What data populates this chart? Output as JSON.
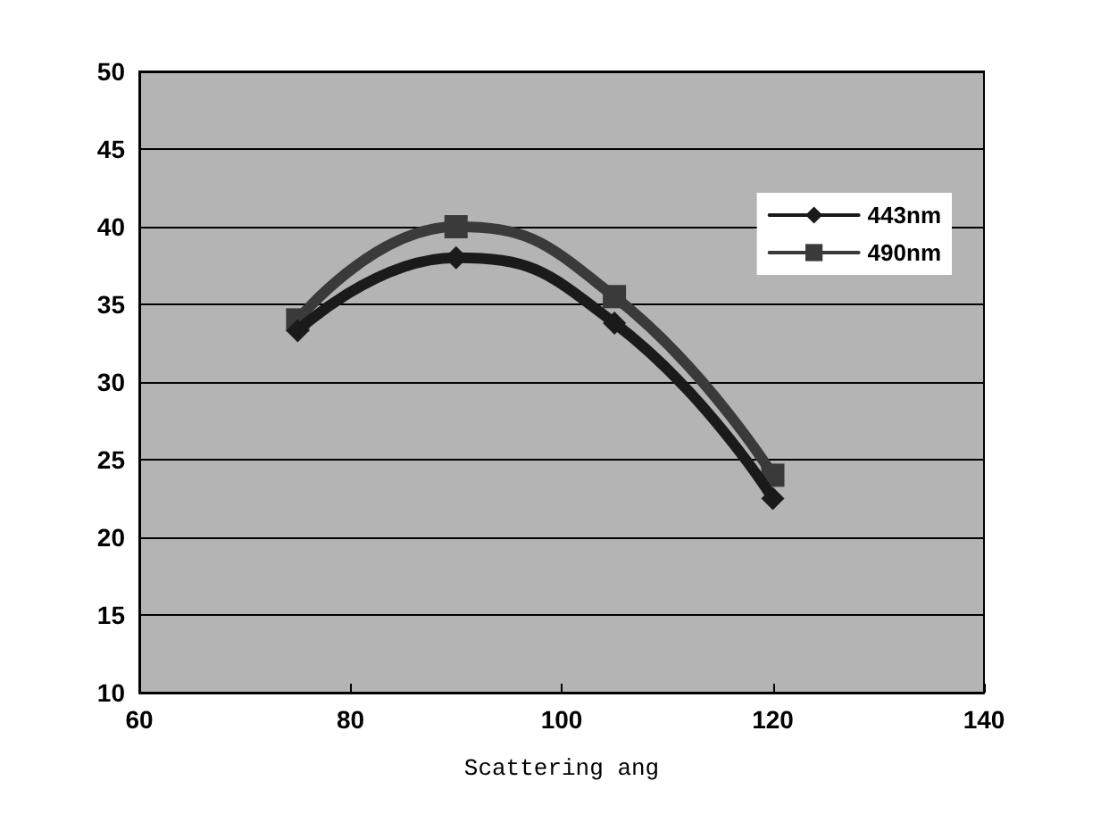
{
  "chart_data": {
    "type": "line",
    "xlabel": "Scattering ang",
    "x": [
      75,
      90,
      105,
      120
    ],
    "series": [
      {
        "name": "443nm",
        "color": "#1a1a1a",
        "marker": "diamond",
        "values": [
          33.3,
          38,
          33.8,
          22.5
        ]
      },
      {
        "name": "490nm",
        "color": "#3a3a3a",
        "marker": "square",
        "values": [
          34,
          40,
          35.5,
          24
        ]
      }
    ],
    "xlim": [
      60,
      140
    ],
    "xticks": [
      60,
      80,
      100,
      120,
      140
    ],
    "ylim": [
      10,
      50
    ],
    "yticks": [
      10,
      15,
      20,
      25,
      30,
      35,
      40,
      45,
      50
    ],
    "grid": "y",
    "legend": "top right",
    "line_style": "solid"
  }
}
